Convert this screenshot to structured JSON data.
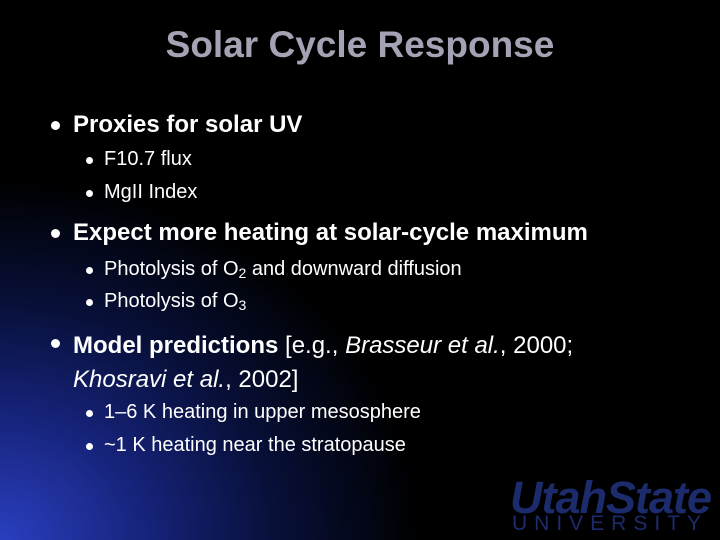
{
  "title": "Solar Cycle Response",
  "bullets": [
    {
      "text": [
        "Proxies for solar UV"
      ],
      "items": [
        [
          "F10.7 flux"
        ],
        [
          "MgII Index"
        ]
      ]
    },
    {
      "text": [
        "Expect more heating at solar-cycle maximum"
      ],
      "items": [
        [
          "Photolysis of O",
          "2",
          " and downward diffusion"
        ],
        [
          "Photolysis of O",
          "3"
        ]
      ]
    },
    {
      "text": [
        "Model predictions",
        " [e.g., ",
        "Brasseur et al.",
        ", 2000; ",
        "Khosravi et al.",
        ", 2002]"
      ],
      "items": [
        [
          "1–6 K heating in upper mesosphere"
        ],
        [
          "~1 K heating near the stratopause"
        ]
      ]
    }
  ],
  "logo": {
    "name": "UtahState",
    "subtitle": "UNIVERSITY"
  }
}
